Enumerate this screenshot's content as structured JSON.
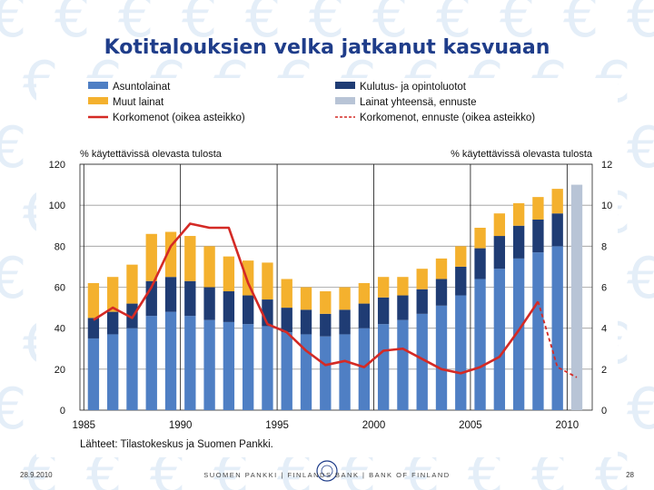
{
  "slide": {
    "title": "Kotitalouksien velka jatkanut kasvuaan",
    "date": "28.9.2010",
    "footer": "SUOMEN PANKKI | FINLANDS BANK | BANK OF FINLAND",
    "page": "28",
    "source": "Lähteet: Tilastokeskus ja Suomen Pankki."
  },
  "colors": {
    "mortgage": "#4f7fc4",
    "consumer": "#1f3c74",
    "other": "#f4b12e",
    "forecast": "#b8c4d6",
    "rate": "#d42a25"
  },
  "chart_data": {
    "type": "bar",
    "stacked": true,
    "legend": [
      {
        "key": "mortgage",
        "label": "Asuntolainat",
        "kind": "bar"
      },
      {
        "key": "consumer",
        "label": "Kulutus- ja opintoluotot",
        "kind": "bar"
      },
      {
        "key": "other",
        "label": "Muut lainat",
        "kind": "bar"
      },
      {
        "key": "forecast",
        "label": "Lainat yhteensä, ennuste",
        "kind": "bar"
      },
      {
        "key": "rate",
        "label": "Korkomenot (oikea asteikko)",
        "kind": "line"
      },
      {
        "key": "rate_forecast",
        "label": "Korkomenot, ennuste (oikea asteikko)",
        "kind": "dashed"
      }
    ],
    "ylabel_left": "% käytettävissä olevasta tulosta",
    "ylabel_right": "% käytettävissä olevasta tulosta",
    "ylim_left": [
      0,
      120
    ],
    "ylim_right": [
      0,
      12
    ],
    "yticks_left": [
      0,
      20,
      40,
      60,
      80,
      100,
      120
    ],
    "yticks_right": [
      0,
      2,
      4,
      6,
      8,
      10,
      12
    ],
    "x_tick_labels": [
      "1985",
      "1990",
      "1995",
      "2000",
      "2005",
      "2010"
    ],
    "years": [
      1985,
      1986,
      1987,
      1988,
      1989,
      1990,
      1991,
      1992,
      1993,
      1994,
      1995,
      1996,
      1997,
      1998,
      1999,
      2000,
      2001,
      2002,
      2003,
      2004,
      2005,
      2006,
      2007,
      2008,
      2009,
      2010
    ],
    "series": [
      {
        "name": "Asuntolainat",
        "key": "mortgage",
        "values": [
          35,
          37,
          40,
          46,
          48,
          46,
          44,
          43,
          42,
          41,
          38,
          37,
          36,
          37,
          40,
          42,
          44,
          47,
          51,
          56,
          64,
          69,
          74,
          77,
          80,
          null
        ]
      },
      {
        "name": "Kulutus- ja opintoluotot",
        "key": "consumer",
        "values": [
          10,
          11,
          12,
          17,
          17,
          17,
          16,
          15,
          14,
          13,
          12,
          12,
          11,
          12,
          12,
          13,
          12,
          12,
          13,
          14,
          15,
          16,
          16,
          16,
          16,
          null
        ]
      },
      {
        "name": "Muut lainat",
        "key": "other",
        "values": [
          17,
          17,
          19,
          23,
          22,
          22,
          20,
          17,
          17,
          18,
          14,
          11,
          11,
          11,
          10,
          10,
          9,
          10,
          10,
          10,
          10,
          11,
          11,
          11,
          12,
          null
        ]
      },
      {
        "name": "Lainat yhteensä, ennuste",
        "key": "forecast",
        "values": [
          null,
          null,
          null,
          null,
          null,
          null,
          null,
          null,
          null,
          null,
          null,
          null,
          null,
          null,
          null,
          null,
          null,
          null,
          null,
          null,
          null,
          null,
          null,
          null,
          null,
          110
        ]
      }
    ],
    "rate_line": {
      "name": "Korkomenot (oikea asteikko)",
      "years": [
        1985,
        1986,
        1987,
        1988,
        1989,
        1990,
        1991,
        1992,
        1993,
        1994,
        1995,
        1996,
        1997,
        1998,
        1999,
        2000,
        2001,
        2002,
        2003,
        2004,
        2005,
        2006,
        2007,
        2008
      ],
      "values": [
        4.4,
        5.0,
        4.5,
        6.0,
        8.0,
        9.1,
        8.9,
        8.9,
        6.2,
        4.2,
        3.8,
        2.9,
        2.2,
        2.4,
        2.1,
        2.9,
        3.0,
        2.5,
        2.0,
        1.8,
        2.1,
        2.6,
        3.9,
        5.3
      ]
    },
    "rate_forecast": {
      "name": "Korkomenot, ennuste (oikea asteikko)",
      "years": [
        2008,
        2009,
        2010
      ],
      "values": [
        5.3,
        2.1,
        1.6
      ]
    },
    "grid": true
  }
}
